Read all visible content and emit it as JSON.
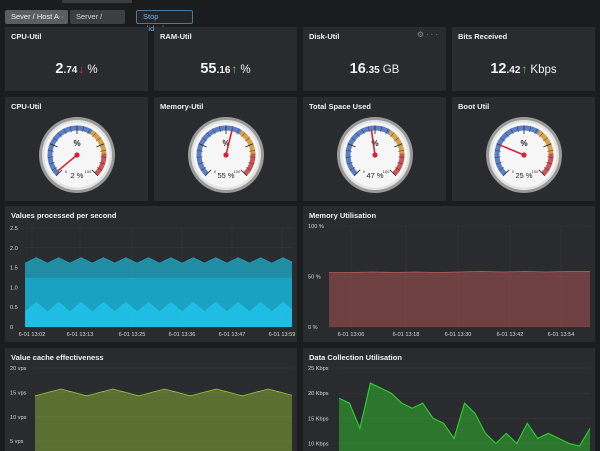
{
  "tabs": [
    {
      "label": "Sever / Host A",
      "active": true
    },
    {
      "label": "Server / Host B",
      "active": false
    }
  ],
  "tab_menu_label": "···",
  "stop_slideshow_label": "Stop slideshow",
  "panel_actions": {
    "settings_icon": "gear-icon",
    "more_icon": "more-icon",
    "more_label": "···"
  },
  "items": [
    {
      "title": "CPU-Util",
      "int": "2",
      "frac": ".74",
      "unit": "%",
      "trend": "down",
      "arrow": "↓"
    },
    {
      "title": "RAM-Util",
      "int": "55",
      "frac": ".16",
      "unit": "%",
      "trend": "up",
      "arrow": "↑"
    },
    {
      "title": "Disk-Util",
      "int": "16",
      "frac": ".35",
      "unit": "GB",
      "trend": "",
      "arrow": ""
    },
    {
      "title": "Bits Received",
      "int": "12",
      "frac": ".42",
      "unit": "Kbps",
      "trend": "up",
      "arrow": "↑"
    }
  ],
  "gauges": [
    {
      "title": "CPU-Util",
      "unit": "%",
      "value": 2,
      "value_text": "2 %",
      "min_label": "0",
      "max_label": "100"
    },
    {
      "title": "Memory-Util",
      "unit": "%",
      "value": 55,
      "value_text": "55 %",
      "min_label": "0",
      "max_label": "100"
    },
    {
      "title": "Total Space Used",
      "unit": "%",
      "value": 47,
      "value_text": "47 %",
      "min_label": "0",
      "max_label": "100"
    },
    {
      "title": "Boot Util",
      "unit": "%",
      "value": 25,
      "value_text": "25 %",
      "min_label": "0",
      "max_label": "100"
    }
  ],
  "colors": {
    "gauge_low": "#5b7fc7",
    "gauge_mid": "#d9a04a",
    "gauge_high": "#c95555",
    "needle": "#d6233a"
  },
  "chart_data": [
    {
      "title": "Values processed per second",
      "type": "area",
      "x_ticks": [
        "6-01 13:02",
        "6-01 13:13",
        "6-01 13:25",
        "6-01 13:36",
        "6-01 13:47",
        "6-01 13:59"
      ],
      "y_ticks": [
        "0",
        "0.5",
        "1.0",
        "1.5",
        "2.0",
        "2.5"
      ],
      "ylim": [
        0,
        2.5
      ],
      "series": [
        {
          "color": "#1f9fb8",
          "baseline": 1.68,
          "amplitude": 0.07,
          "period": 10
        },
        {
          "color": "#1aa6c8",
          "baseline": 1.23,
          "amplitude": 0.0,
          "period": 10
        },
        {
          "color": "#21c2ea",
          "baseline": 0.5,
          "amplitude": 0.12,
          "period": 10
        }
      ]
    },
    {
      "title": "Memory Utilisation",
      "type": "area",
      "x_ticks": [
        "6-01 13:06",
        "6-01 13:18",
        "6-01 13:30",
        "6-01 13:42",
        "6-01 13:54"
      ],
      "y_ticks": [
        "0 %",
        "50 %",
        "100 %"
      ],
      "ylim": [
        0,
        100
      ],
      "series": [
        {
          "color": "#c05a5a",
          "values": [
            54,
            54,
            54.5,
            54,
            54.5,
            54,
            54.5,
            55,
            54.5,
            55,
            54.5,
            55,
            55
          ]
        }
      ]
    },
    {
      "title": "Value cache effectiveness",
      "type": "area",
      "y_ticks": [
        "5 vps",
        "10 vps",
        "15 vps",
        "20 vps"
      ],
      "ylim": [
        3,
        20
      ],
      "series": [
        {
          "color": "#9ac33a",
          "baseline": 15,
          "amplitude": 0.7,
          "period": 24
        }
      ]
    },
    {
      "title": "Data Collection Utilisation",
      "type": "area",
      "y_ticks": [
        "10 Kbps",
        "15 Kbps",
        "20 Kbps",
        "25 Kbps"
      ],
      "ylim": [
        8.5,
        25
      ],
      "series": [
        {
          "color": "#2fd22f",
          "values": [
            19,
            18,
            13,
            22,
            21,
            20,
            18,
            17,
            18,
            15,
            14,
            11,
            18,
            16,
            12,
            10,
            12,
            10,
            14,
            11,
            12,
            11,
            10,
            9.5,
            13
          ]
        }
      ]
    }
  ]
}
